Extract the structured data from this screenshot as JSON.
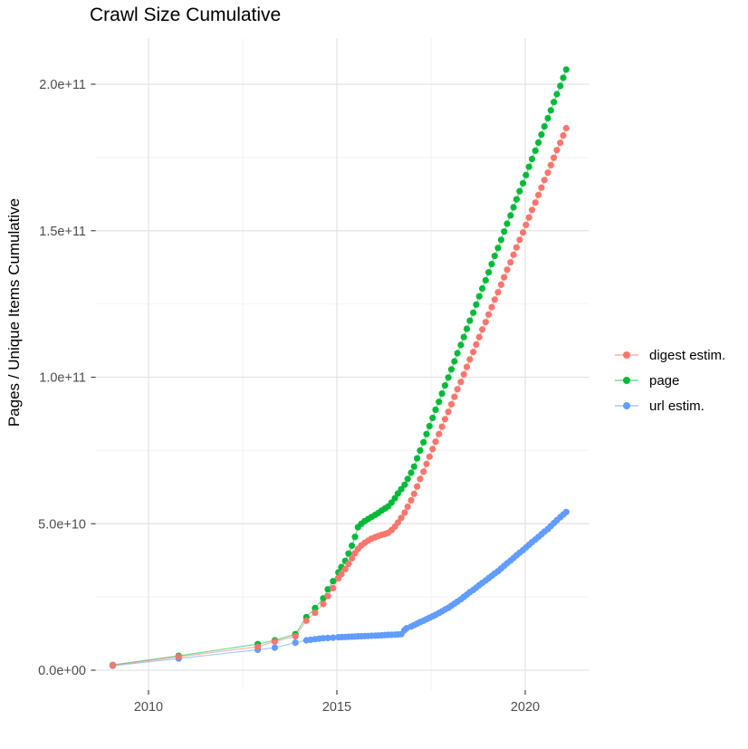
{
  "title": "Crawl Size Cumulative",
  "y_axis": {
    "label": "Pages / Unique Items Cumulative",
    "ticks": [
      {
        "v": 0,
        "label": "0.0e+00"
      },
      {
        "v": 50,
        "label": "5.0e+10"
      },
      {
        "v": 100,
        "label": "1.0e+11"
      },
      {
        "v": 150,
        "label": "1.5e+11"
      },
      {
        "v": 200,
        "label": "2.0e+11"
      }
    ],
    "minor": [
      25,
      75,
      125,
      175
    ],
    "unit_multiplier": 1000000000
  },
  "x_axis": {
    "ticks": [
      {
        "v": 2010,
        "label": "2010"
      },
      {
        "v": 2015,
        "label": "2015"
      },
      {
        "v": 2020,
        "label": "2020"
      }
    ],
    "minor": [
      2012.5,
      2017.5
    ]
  },
  "legend": {
    "items": [
      {
        "label": "digest estim.",
        "color": "#F8766D"
      },
      {
        "label": "page",
        "color": "#00BA38"
      },
      {
        "label": "url estim.",
        "color": "#619CFF"
      }
    ]
  },
  "palette": {
    "digest": "#F8766D",
    "page": "#00BA38",
    "url": "#619CFF",
    "grid_major": "#E3E3E3",
    "grid_minor": "#F2F2F2",
    "tick_mark": "#333333",
    "axis_text": "#4D4D4D",
    "title_text": "#000000"
  },
  "chart_data": {
    "type": "line",
    "subtype": "points-with-lines (cumulative)",
    "title": "Crawl Size Cumulative",
    "xlabel": "",
    "ylabel": "Pages / Unique Items Cumulative",
    "x_range": [
      2008.45,
      2021.7
    ],
    "ylim_billions": [
      -7,
      216
    ],
    "grid": "major+minor",
    "legend_position": "right-center",
    "value_unit": "billions (multiply by 1e9 for axis values)",
    "draw_order": [
      "url estim.",
      "page",
      "digest estim."
    ],
    "series": [
      {
        "name": "digest estim.",
        "color": "#F8766D",
        "points": [
          [
            2009.05,
            1.7
          ],
          [
            2010.8,
            4.6
          ],
          [
            2012.9,
            8.0
          ],
          [
            2013.35,
            9.8
          ],
          [
            2013.9,
            11.6
          ],
          [
            2014.19,
            16.9
          ],
          [
            2014.42,
            19.6
          ],
          [
            2014.64,
            22.6
          ],
          [
            2014.76,
            25.3
          ],
          [
            2014.9,
            28.0
          ],
          [
            2015.04,
            31.3
          ],
          [
            2015.12,
            32.8
          ],
          [
            2015.22,
            34.5
          ],
          [
            2015.31,
            36.3
          ],
          [
            2015.4,
            38.2
          ],
          [
            2015.48,
            39.9
          ],
          [
            2015.56,
            41.4
          ],
          [
            2015.65,
            42.6
          ],
          [
            2015.74,
            43.5
          ],
          [
            2015.83,
            44.2
          ],
          [
            2015.92,
            44.9
          ],
          [
            2016.02,
            45.4
          ],
          [
            2016.1,
            45.8
          ],
          [
            2016.19,
            46.2
          ],
          [
            2016.28,
            46.5
          ],
          [
            2016.36,
            46.9
          ],
          [
            2016.45,
            47.8
          ],
          [
            2016.54,
            49.0
          ],
          [
            2016.62,
            50.4
          ],
          [
            2016.71,
            52.0
          ],
          [
            2016.8,
            53.8
          ],
          [
            2016.88,
            55.8
          ],
          [
            2016.97,
            58.0
          ],
          [
            2017.05,
            60.2
          ],
          [
            2017.13,
            62.7
          ],
          [
            2017.21,
            65.3
          ],
          [
            2017.3,
            67.8
          ],
          [
            2017.38,
            70.4
          ],
          [
            2017.46,
            72.9
          ],
          [
            2017.54,
            75.5
          ],
          [
            2017.62,
            78.0
          ],
          [
            2017.71,
            80.6
          ],
          [
            2017.79,
            83.1
          ],
          [
            2017.87,
            85.7
          ],
          [
            2017.96,
            88.2
          ],
          [
            2018.04,
            90.8
          ],
          [
            2018.12,
            93.3
          ],
          [
            2018.2,
            95.9
          ],
          [
            2018.29,
            98.4
          ],
          [
            2018.37,
            101.0
          ],
          [
            2018.45,
            103.5
          ],
          [
            2018.53,
            106.1
          ],
          [
            2018.62,
            108.6
          ],
          [
            2018.7,
            111.2
          ],
          [
            2018.78,
            113.7
          ],
          [
            2018.86,
            116.3
          ],
          [
            2018.95,
            118.8
          ],
          [
            2019.03,
            121.4
          ],
          [
            2019.11,
            123.9
          ],
          [
            2019.19,
            126.5
          ],
          [
            2019.28,
            129.0
          ],
          [
            2019.36,
            131.6
          ],
          [
            2019.44,
            134.1
          ],
          [
            2019.52,
            136.7
          ],
          [
            2019.61,
            139.2
          ],
          [
            2019.69,
            141.8
          ],
          [
            2019.77,
            144.3
          ],
          [
            2019.85,
            146.9
          ],
          [
            2019.94,
            149.4
          ],
          [
            2020.02,
            152.0
          ],
          [
            2020.1,
            154.5
          ],
          [
            2020.18,
            157.1
          ],
          [
            2020.27,
            159.6
          ],
          [
            2020.35,
            162.2
          ],
          [
            2020.43,
            164.7
          ],
          [
            2020.51,
            167.3
          ],
          [
            2020.6,
            169.8
          ],
          [
            2020.68,
            172.4
          ],
          [
            2020.76,
            174.9
          ],
          [
            2020.84,
            177.5
          ],
          [
            2020.93,
            180.0
          ],
          [
            2021.01,
            182.5
          ],
          [
            2021.09,
            185.0
          ]
        ]
      },
      {
        "name": "page",
        "color": "#00BA38",
        "points": [
          [
            2009.05,
            1.8
          ],
          [
            2010.8,
            4.9
          ],
          [
            2012.9,
            8.9
          ],
          [
            2013.35,
            10.2
          ],
          [
            2013.9,
            12.3
          ],
          [
            2014.19,
            18.1
          ],
          [
            2014.42,
            21.2
          ],
          [
            2014.64,
            24.5
          ],
          [
            2014.76,
            27.6
          ],
          [
            2014.9,
            30.4
          ],
          [
            2015.04,
            33.4
          ],
          [
            2015.12,
            35.2
          ],
          [
            2015.22,
            37.3
          ],
          [
            2015.31,
            39.8
          ],
          [
            2015.4,
            42.5
          ],
          [
            2015.48,
            45.5
          ],
          [
            2015.56,
            48.8
          ],
          [
            2015.65,
            50.0
          ],
          [
            2015.74,
            50.9
          ],
          [
            2015.83,
            51.6
          ],
          [
            2015.92,
            52.3
          ],
          [
            2016.02,
            53.0
          ],
          [
            2016.1,
            53.7
          ],
          [
            2016.19,
            54.5
          ],
          [
            2016.28,
            55.2
          ],
          [
            2016.36,
            55.9
          ],
          [
            2016.45,
            57.2
          ],
          [
            2016.54,
            58.7
          ],
          [
            2016.62,
            60.3
          ],
          [
            2016.71,
            61.8
          ],
          [
            2016.8,
            63.3
          ],
          [
            2016.88,
            65.3
          ],
          [
            2016.97,
            67.4
          ],
          [
            2017.05,
            69.5
          ],
          [
            2017.13,
            72.3
          ],
          [
            2017.21,
            75.0
          ],
          [
            2017.3,
            77.8
          ],
          [
            2017.38,
            80.6
          ],
          [
            2017.46,
            83.3
          ],
          [
            2017.54,
            86.1
          ],
          [
            2017.62,
            88.9
          ],
          [
            2017.71,
            91.6
          ],
          [
            2017.79,
            94.4
          ],
          [
            2017.87,
            97.2
          ],
          [
            2017.96,
            99.9
          ],
          [
            2018.04,
            102.7
          ],
          [
            2018.12,
            105.4
          ],
          [
            2018.2,
            108.2
          ],
          [
            2018.29,
            111.0
          ],
          [
            2018.37,
            113.7
          ],
          [
            2018.45,
            116.5
          ],
          [
            2018.53,
            119.3
          ],
          [
            2018.62,
            122.0
          ],
          [
            2018.7,
            124.8
          ],
          [
            2018.78,
            127.6
          ],
          [
            2018.86,
            130.3
          ],
          [
            2018.95,
            133.1
          ],
          [
            2019.03,
            135.8
          ],
          [
            2019.11,
            138.6
          ],
          [
            2019.19,
            141.4
          ],
          [
            2019.28,
            144.1
          ],
          [
            2019.36,
            146.9
          ],
          [
            2019.44,
            149.7
          ],
          [
            2019.52,
            152.4
          ],
          [
            2019.61,
            155.2
          ],
          [
            2019.69,
            158.0
          ],
          [
            2019.77,
            160.7
          ],
          [
            2019.85,
            163.5
          ],
          [
            2019.94,
            166.2
          ],
          [
            2020.02,
            169.0
          ],
          [
            2020.1,
            171.8
          ],
          [
            2020.18,
            174.5
          ],
          [
            2020.27,
            177.3
          ],
          [
            2020.35,
            180.1
          ],
          [
            2020.43,
            182.8
          ],
          [
            2020.51,
            185.6
          ],
          [
            2020.6,
            188.4
          ],
          [
            2020.68,
            191.1
          ],
          [
            2020.76,
            193.9
          ],
          [
            2020.84,
            196.6
          ],
          [
            2020.93,
            199.4
          ],
          [
            2021.01,
            202.2
          ],
          [
            2021.09,
            205.0
          ]
        ]
      },
      {
        "name": "url estim.",
        "color": "#619CFF",
        "points": [
          [
            2009.05,
            1.5
          ],
          [
            2010.8,
            4.0
          ],
          [
            2012.9,
            7.0
          ],
          [
            2013.35,
            7.7
          ],
          [
            2013.9,
            9.4
          ],
          [
            2014.19,
            10.2
          ],
          [
            2014.3,
            10.4
          ],
          [
            2014.42,
            10.6
          ],
          [
            2014.53,
            10.75
          ],
          [
            2014.64,
            10.9
          ],
          [
            2014.76,
            11.0
          ],
          [
            2014.9,
            11.1
          ],
          [
            2015.04,
            11.25
          ],
          [
            2015.13,
            11.3
          ],
          [
            2015.22,
            11.35
          ],
          [
            2015.31,
            11.4
          ],
          [
            2015.4,
            11.45
          ],
          [
            2015.48,
            11.5
          ],
          [
            2015.56,
            11.55
          ],
          [
            2015.65,
            11.6
          ],
          [
            2015.74,
            11.65
          ],
          [
            2015.83,
            11.7
          ],
          [
            2015.92,
            11.75
          ],
          [
            2016.02,
            11.8
          ],
          [
            2016.1,
            11.85
          ],
          [
            2016.19,
            11.9
          ],
          [
            2016.28,
            12.0
          ],
          [
            2016.36,
            12.05
          ],
          [
            2016.45,
            12.1
          ],
          [
            2016.54,
            12.15
          ],
          [
            2016.62,
            12.2
          ],
          [
            2016.71,
            12.3
          ],
          [
            2016.79,
            13.6
          ],
          [
            2016.85,
            14.3
          ],
          [
            2016.97,
            14.9
          ],
          [
            2017.05,
            15.4
          ],
          [
            2017.13,
            15.9
          ],
          [
            2017.21,
            16.4
          ],
          [
            2017.3,
            16.9
          ],
          [
            2017.38,
            17.4
          ],
          [
            2017.46,
            17.9
          ],
          [
            2017.54,
            18.4
          ],
          [
            2017.62,
            18.9
          ],
          [
            2017.71,
            19.5
          ],
          [
            2017.79,
            20.1
          ],
          [
            2017.87,
            20.7
          ],
          [
            2017.96,
            21.3
          ],
          [
            2018.04,
            22.0
          ],
          [
            2018.12,
            22.7
          ],
          [
            2018.2,
            23.4
          ],
          [
            2018.29,
            24.2
          ],
          [
            2018.37,
            25.0
          ],
          [
            2018.45,
            25.8
          ],
          [
            2018.53,
            26.6
          ],
          [
            2018.62,
            27.4
          ],
          [
            2018.7,
            28.2
          ],
          [
            2018.78,
            29.0
          ],
          [
            2018.86,
            29.8
          ],
          [
            2018.95,
            30.6
          ],
          [
            2019.03,
            31.4
          ],
          [
            2019.11,
            32.2
          ],
          [
            2019.19,
            33.0
          ],
          [
            2019.28,
            33.8
          ],
          [
            2019.36,
            34.7
          ],
          [
            2019.44,
            35.6
          ],
          [
            2019.52,
            36.5
          ],
          [
            2019.61,
            37.4
          ],
          [
            2019.69,
            38.3
          ],
          [
            2019.77,
            39.2
          ],
          [
            2019.85,
            40.1
          ],
          [
            2019.94,
            41.0
          ],
          [
            2020.02,
            41.9
          ],
          [
            2020.1,
            42.8
          ],
          [
            2020.18,
            43.7
          ],
          [
            2020.27,
            44.6
          ],
          [
            2020.35,
            45.5
          ],
          [
            2020.43,
            46.4
          ],
          [
            2020.51,
            47.3
          ],
          [
            2020.6,
            48.2
          ],
          [
            2020.68,
            49.2
          ],
          [
            2020.76,
            50.2
          ],
          [
            2020.84,
            51.2
          ],
          [
            2020.93,
            52.2
          ],
          [
            2021.01,
            53.1
          ],
          [
            2021.09,
            54.0
          ]
        ]
      }
    ]
  }
}
